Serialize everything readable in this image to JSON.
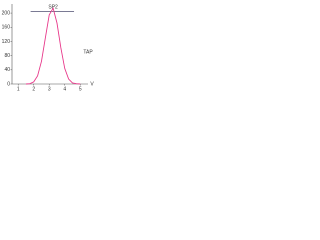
{
  "chart_data": {
    "type": "line",
    "x_label": "V",
    "annotation": "TAP",
    "x": [
      1.5,
      1.75,
      2,
      2.25,
      2.5,
      2.75,
      3,
      3.25,
      3.5,
      3.75,
      4,
      4.25,
      4.5,
      4.75,
      5
    ],
    "series": [
      {
        "name": "SP2",
        "color": "#e8388a",
        "values": [
          0,
          1,
          6,
          23,
          64,
          130,
          195,
          214,
          172,
          102,
          44,
          14,
          3,
          1,
          0
        ]
      }
    ],
    "reference_line": {
      "y": 205,
      "x": [
        1.8,
        4.6
      ],
      "color": "#2b2b55"
    },
    "xlim": [
      0.6,
      5.5
    ],
    "ylim": [
      0,
      220
    ],
    "xticks": [
      1,
      2,
      3,
      4,
      5
    ],
    "yticks": [
      0,
      40,
      80,
      120,
      160,
      200
    ]
  }
}
